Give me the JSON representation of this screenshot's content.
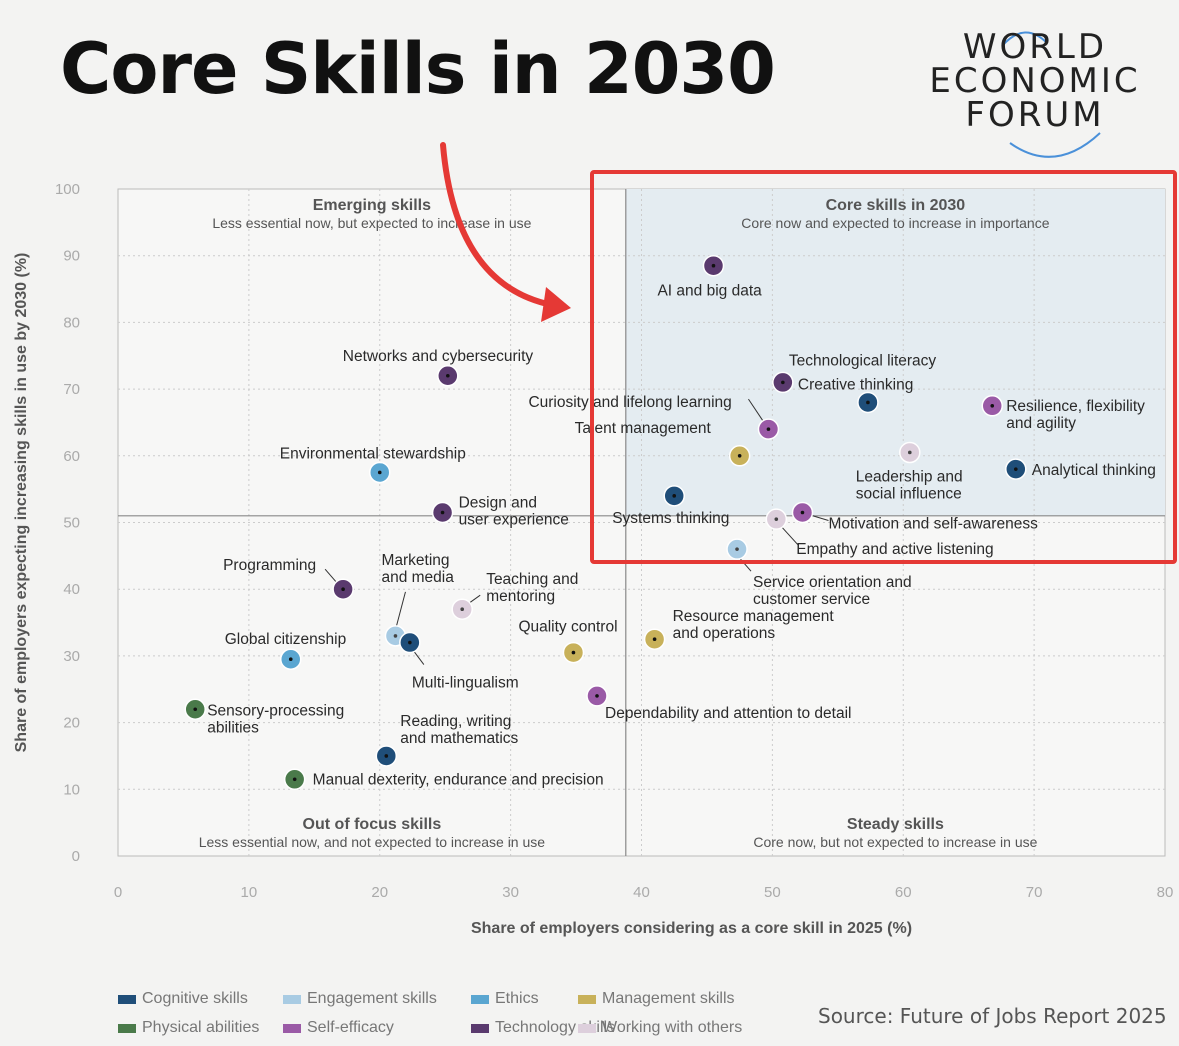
{
  "header": {
    "title": "Core Skills in 2030"
  },
  "logo": {
    "lines": [
      "WORLD",
      "ECONOMIC",
      "FORUM"
    ]
  },
  "source": "Source: Future of Jobs Report 2025",
  "colors": {
    "cognitive": "#1f4e79",
    "engagement": "#a8cbe3",
    "ethics": "#5aa6d1",
    "management": "#c8b15a",
    "physical": "#4a7a4a",
    "self_efficacy": "#9a5aa6",
    "technology": "#5a3a6e",
    "working_with_others": "#ddcfdc",
    "highlight": "#e53935",
    "arrow": "#e53935"
  },
  "chart_data": {
    "type": "scatter",
    "xlabel": "Share of employers considering as a core skill in 2025 (%)",
    "ylabel": "Share of employers expecting increasing skills in use by 2030 (%)",
    "xlim": [
      0,
      80
    ],
    "ylim": [
      0,
      100
    ],
    "xticks": [
      "0",
      "10",
      "20",
      "30",
      "40",
      "50",
      "60",
      "70",
      "80"
    ],
    "yticks": [
      "0",
      "10",
      "20",
      "30",
      "40",
      "50",
      "60",
      "70",
      "80",
      "90",
      "100"
    ],
    "grid": true,
    "divider_x": 38.8,
    "divider_y": 51,
    "quadrants": [
      {
        "title": "Emerging skills",
        "subtitle": "Less essential now, but expected to increase in use"
      },
      {
        "title": "Core skills in 2030",
        "subtitle": "Core now and expected to increase in importance"
      },
      {
        "title": "Out of focus skills",
        "subtitle": "Less essential now, and not expected to increase in use"
      },
      {
        "title": "Steady skills",
        "subtitle": "Core now, but not expected to increase in use"
      }
    ],
    "legend": [
      {
        "name": "Cognitive skills",
        "key": "cognitive"
      },
      {
        "name": "Engagement skills",
        "key": "engagement"
      },
      {
        "name": "Ethics",
        "key": "ethics"
      },
      {
        "name": "Management skills",
        "key": "management"
      },
      {
        "name": "Physical abilities",
        "key": "physical"
      },
      {
        "name": "Self-efficacy",
        "key": "self_efficacy"
      },
      {
        "name": "Technology skills",
        "key": "technology"
      },
      {
        "name": "Working with others",
        "key": "working_with_others"
      }
    ],
    "points": [
      {
        "label": "AI and big data",
        "cat": "technology",
        "x": 45.5,
        "y": 88.5
      },
      {
        "label": "Technological literacy",
        "cat": "technology",
        "x": 50.8,
        "y": 71
      },
      {
        "label": "Creative thinking",
        "cat": "cognitive",
        "x": 57.3,
        "y": 68
      },
      {
        "label": "Resilience, flexibility and agility",
        "cat": "self_efficacy",
        "x": 66.8,
        "y": 67.5
      },
      {
        "label": "Curiosity and lifelong learning",
        "cat": "self_efficacy",
        "x": 49.7,
        "y": 64
      },
      {
        "label": "Talent management",
        "cat": "management",
        "x": 47.5,
        "y": 60
      },
      {
        "label": "Leadership and social influence",
        "cat": "working_with_others",
        "x": 60.5,
        "y": 60.5
      },
      {
        "label": "Analytical thinking",
        "cat": "cognitive",
        "x": 68.6,
        "y": 58
      },
      {
        "label": "Systems thinking",
        "cat": "cognitive",
        "x": 42.5,
        "y": 54
      },
      {
        "label": "Motivation and self-awareness",
        "cat": "self_efficacy",
        "x": 52.3,
        "y": 51.5
      },
      {
        "label": "Empathy and active listening",
        "cat": "working_with_others",
        "x": 50.3,
        "y": 50.5
      },
      {
        "label": "Service orientation and customer service",
        "cat": "engagement",
        "x": 47.3,
        "y": 46
      },
      {
        "label": "Networks and cybersecurity",
        "cat": "technology",
        "x": 25.2,
        "y": 72
      },
      {
        "label": "Environmental stewardship",
        "cat": "ethics",
        "x": 20,
        "y": 57.5
      },
      {
        "label": "Design and user experience",
        "cat": "technology",
        "x": 24.8,
        "y": 51.5
      },
      {
        "label": "Programming",
        "cat": "technology",
        "x": 17.2,
        "y": 40
      },
      {
        "label": "Marketing and media",
        "cat": "engagement",
        "x": 21.2,
        "y": 33
      },
      {
        "label": "Multi-lingualism",
        "cat": "cognitive",
        "x": 22.3,
        "y": 32
      },
      {
        "label": "Teaching and mentoring",
        "cat": "working_with_others",
        "x": 26.3,
        "y": 37
      },
      {
        "label": "Global citizenship",
        "cat": "ethics",
        "x": 13.2,
        "y": 29.5
      },
      {
        "label": "Quality control",
        "cat": "management",
        "x": 34.8,
        "y": 30.5
      },
      {
        "label": "Resource management and operations",
        "cat": "management",
        "x": 41,
        "y": 32.5
      },
      {
        "label": "Dependability and attention to detail",
        "cat": "self_efficacy",
        "x": 36.6,
        "y": 24
      },
      {
        "label": "Sensory-processing abilities",
        "cat": "physical",
        "x": 5.9,
        "y": 22
      },
      {
        "label": "Reading, writing and mathematics",
        "cat": "cognitive",
        "x": 20.5,
        "y": 15
      },
      {
        "label": "Manual dexterity, endurance and precision",
        "cat": "physical",
        "x": 13.5,
        "y": 11.5
      }
    ]
  }
}
